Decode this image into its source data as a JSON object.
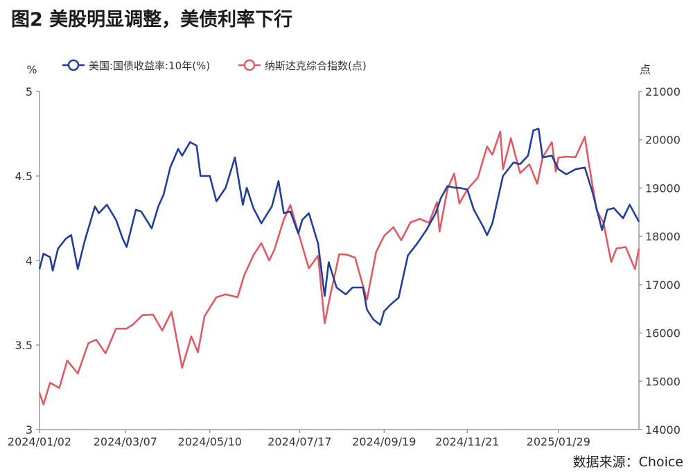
{
  "title": "图2  美股明显调整，美债利率下行",
  "source": "数据来源：Choice",
  "chart_data": {
    "type": "line",
    "title": "图2  美股明显调整，美债利率下行",
    "left_axis": {
      "unit": "%",
      "range": [
        3,
        5
      ],
      "ticks": [
        "3",
        "3.5",
        "4",
        "4.5",
        "5"
      ]
    },
    "right_axis": {
      "unit": "点",
      "range": [
        14000,
        21000
      ],
      "ticks": [
        "14000",
        "15000",
        "16000",
        "17000",
        "18000",
        "19000",
        "20000",
        "21000"
      ]
    },
    "x_ticks": [
      "2024/01/02",
      "2024/03/07",
      "2024/05/10",
      "2024/07/17",
      "2024/09/19",
      "2024/11/21",
      "2025/01/29"
    ],
    "x_range": [
      "2024/01/02",
      "2025/03/31"
    ],
    "grid": false,
    "legend_position": "top",
    "series": [
      {
        "name": "美国:国债收益率:10年(%)",
        "axis": "left",
        "color": "#1f3f99",
        "points": [
          [
            "2024/01/02",
            3.95
          ],
          [
            "2024/01/05",
            4.04
          ],
          [
            "2024/01/10",
            4.02
          ],
          [
            "2024/01/12",
            3.94
          ],
          [
            "2024/01/16",
            4.07
          ],
          [
            "2024/01/22",
            4.13
          ],
          [
            "2024/01/26",
            4.15
          ],
          [
            "2024/01/31",
            3.95
          ],
          [
            "2024/02/05",
            4.11
          ],
          [
            "2024/02/13",
            4.32
          ],
          [
            "2024/02/16",
            4.28
          ],
          [
            "2024/02/22",
            4.33
          ],
          [
            "2024/02/29",
            4.24
          ],
          [
            "2024/03/05",
            4.13
          ],
          [
            "2024/03/08",
            4.08
          ],
          [
            "2024/03/15",
            4.3
          ],
          [
            "2024/03/19",
            4.29
          ],
          [
            "2024/03/27",
            4.19
          ],
          [
            "2024/04/01",
            4.32
          ],
          [
            "2024/04/05",
            4.39
          ],
          [
            "2024/04/10",
            4.55
          ],
          [
            "2024/04/16",
            4.66
          ],
          [
            "2024/04/19",
            4.62
          ],
          [
            "2024/04/25",
            4.7
          ],
          [
            "2024/04/30",
            4.68
          ],
          [
            "2024/05/03",
            4.5
          ],
          [
            "2024/05/10",
            4.5
          ],
          [
            "2024/05/15",
            4.35
          ],
          [
            "2024/05/22",
            4.43
          ],
          [
            "2024/05/29",
            4.61
          ],
          [
            "2024/06/04",
            4.33
          ],
          [
            "2024/06/07",
            4.43
          ],
          [
            "2024/06/12",
            4.31
          ],
          [
            "2024/06/18",
            4.22
          ],
          [
            "2024/06/26",
            4.32
          ],
          [
            "2024/07/01",
            4.47
          ],
          [
            "2024/07/05",
            4.28
          ],
          [
            "2024/07/10",
            4.29
          ],
          [
            "2024/07/16",
            4.16
          ],
          [
            "2024/07/19",
            4.24
          ],
          [
            "2024/07/24",
            4.28
          ],
          [
            "2024/07/31",
            4.1
          ],
          [
            "2024/08/05",
            3.79
          ],
          [
            "2024/08/08",
            3.99
          ],
          [
            "2024/08/14",
            3.84
          ],
          [
            "2024/08/21",
            3.8
          ],
          [
            "2024/08/26",
            3.84
          ],
          [
            "2024/09/03",
            3.84
          ],
          [
            "2024/09/06",
            3.71
          ],
          [
            "2024/09/11",
            3.65
          ],
          [
            "2024/09/16",
            3.62
          ],
          [
            "2024/09/19",
            3.7
          ],
          [
            "2024/09/24",
            3.74
          ],
          [
            "2024/09/30",
            3.78
          ],
          [
            "2024/10/07",
            4.03
          ],
          [
            "2024/10/14",
            4.1
          ],
          [
            "2024/10/21",
            4.18
          ],
          [
            "2024/10/28",
            4.28
          ],
          [
            "2024/11/01",
            4.37
          ],
          [
            "2024/11/06",
            4.44
          ],
          [
            "2024/11/12",
            4.43
          ],
          [
            "2024/11/15",
            4.43
          ],
          [
            "2024/11/21",
            4.42
          ],
          [
            "2024/11/26",
            4.3
          ],
          [
            "2024/12/03",
            4.2
          ],
          [
            "2024/12/06",
            4.15
          ],
          [
            "2024/12/10",
            4.22
          ],
          [
            "2024/12/18",
            4.5
          ],
          [
            "2024/12/26",
            4.58
          ],
          [
            "2024/12/31",
            4.57
          ],
          [
            "2025/01/06",
            4.62
          ],
          [
            "2025/01/10",
            4.77
          ],
          [
            "2025/01/14",
            4.78
          ],
          [
            "2025/01/17",
            4.61
          ],
          [
            "2025/01/24",
            4.62
          ],
          [
            "2025/01/29",
            4.54
          ],
          [
            "2025/02/04",
            4.51
          ],
          [
            "2025/02/11",
            4.54
          ],
          [
            "2025/02/18",
            4.55
          ],
          [
            "2025/02/24",
            4.4
          ],
          [
            "2025/03/03",
            4.18
          ],
          [
            "2025/03/07",
            4.3
          ],
          [
            "2025/03/12",
            4.31
          ],
          [
            "2025/03/19",
            4.25
          ],
          [
            "2025/03/24",
            4.33
          ],
          [
            "2025/03/31",
            4.23
          ]
        ]
      },
      {
        "name": "纳斯达克综合指数(点)",
        "axis": "right",
        "color": "#e05a63",
        "points": [
          [
            "2024/01/02",
            14760
          ],
          [
            "2024/01/05",
            14520
          ],
          [
            "2024/01/10",
            14970
          ],
          [
            "2024/01/17",
            14860
          ],
          [
            "2024/01/23",
            15430
          ],
          [
            "2024/01/31",
            15160
          ],
          [
            "2024/02/08",
            15790
          ],
          [
            "2024/02/14",
            15860
          ],
          [
            "2024/02/21",
            15580
          ],
          [
            "2024/02/29",
            16090
          ],
          [
            "2024/03/08",
            16090
          ],
          [
            "2024/03/13",
            16180
          ],
          [
            "2024/03/20",
            16370
          ],
          [
            "2024/03/28",
            16380
          ],
          [
            "2024/04/04",
            16050
          ],
          [
            "2024/04/11",
            16440
          ],
          [
            "2024/04/19",
            15280
          ],
          [
            "2024/04/26",
            15930
          ],
          [
            "2024/05/01",
            15600
          ],
          [
            "2024/05/06",
            16350
          ],
          [
            "2024/05/15",
            16740
          ],
          [
            "2024/05/22",
            16800
          ],
          [
            "2024/05/31",
            16740
          ],
          [
            "2024/06/05",
            17190
          ],
          [
            "2024/06/12",
            17610
          ],
          [
            "2024/06/18",
            17860
          ],
          [
            "2024/06/24",
            17500
          ],
          [
            "2024/06/28",
            17730
          ],
          [
            "2024/07/05",
            18350
          ],
          [
            "2024/07/10",
            18650
          ],
          [
            "2024/07/17",
            17990
          ],
          [
            "2024/07/24",
            17340
          ],
          [
            "2024/07/31",
            17600
          ],
          [
            "2024/08/05",
            16200
          ],
          [
            "2024/08/09",
            16750
          ],
          [
            "2024/08/16",
            17630
          ],
          [
            "2024/08/22",
            17620
          ],
          [
            "2024/08/28",
            17560
          ],
          [
            "2024/09/06",
            16690
          ],
          [
            "2024/09/13",
            17680
          ],
          [
            "2024/09/19",
            18010
          ],
          [
            "2024/09/26",
            18190
          ],
          [
            "2024/10/02",
            17920
          ],
          [
            "2024/10/09",
            18290
          ],
          [
            "2024/10/16",
            18360
          ],
          [
            "2024/10/23",
            18280
          ],
          [
            "2024/10/29",
            18710
          ],
          [
            "2024/10/31",
            18100
          ],
          [
            "2024/11/06",
            18980
          ],
          [
            "2024/11/11",
            19300
          ],
          [
            "2024/11/15",
            18680
          ],
          [
            "2024/11/21",
            18970
          ],
          [
            "2024/11/29",
            19220
          ],
          [
            "2024/12/06",
            19860
          ],
          [
            "2024/12/10",
            19690
          ],
          [
            "2024/12/16",
            20170
          ],
          [
            "2024/12/18",
            19390
          ],
          [
            "2024/12/24",
            20030
          ],
          [
            "2024/12/31",
            19310
          ],
          [
            "2025/01/07",
            19490
          ],
          [
            "2025/01/13",
            19090
          ],
          [
            "2025/01/17",
            19630
          ],
          [
            "2025/01/24",
            19950
          ],
          [
            "2025/01/27",
            19340
          ],
          [
            "2025/01/29",
            19630
          ],
          [
            "2025/02/04",
            19650
          ],
          [
            "2025/02/11",
            19640
          ],
          [
            "2025/02/18",
            20060
          ],
          [
            "2025/02/21",
            19520
          ],
          [
            "2025/02/27",
            18540
          ],
          [
            "2025/03/04",
            18290
          ],
          [
            "2025/03/10",
            17470
          ],
          [
            "2025/03/14",
            17750
          ],
          [
            "2025/03/21",
            17780
          ],
          [
            "2025/03/28",
            17320
          ],
          [
            "2025/03/31",
            17750
          ]
        ]
      }
    ]
  }
}
